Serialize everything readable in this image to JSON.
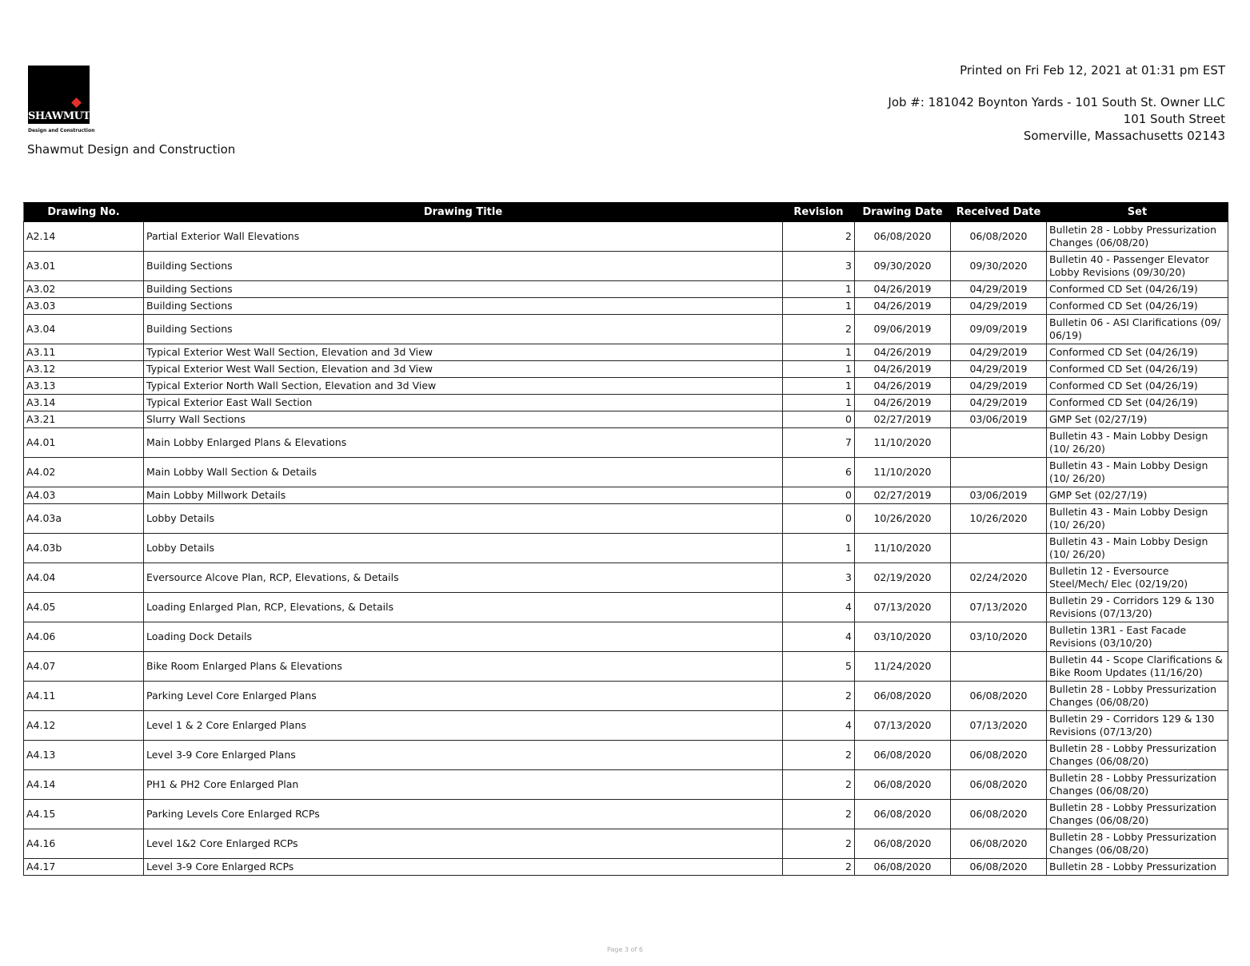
{
  "header": {
    "logo_text": "SHAWMUT",
    "logo_subtext": "Design and Construction",
    "company": "Shawmut Design and Construction",
    "printed": "Printed on Fri Feb 12, 2021 at 01:31 pm EST",
    "job": "Job #: 181042 Boynton Yards - 101 South St. Owner LLC",
    "address1": "101 South Street",
    "address2": "Somerville, Massachusetts 02143"
  },
  "table": {
    "columns": [
      "Drawing No.",
      "Drawing Title",
      "Revision",
      "Drawing Date",
      "Received Date",
      "Set"
    ],
    "rows": [
      [
        "A2.14",
        "Partial Exterior Wall Elevations",
        "2",
        "06/08/2020",
        "06/08/2020",
        "Bulletin 28 - Lobby Pressurization Changes (06/08/20)"
      ],
      [
        "A3.01",
        "Building Sections",
        "3",
        "09/30/2020",
        "09/30/2020",
        "Bulletin 40 - Passenger Elevator Lobby Revisions (09/30/20)"
      ],
      [
        "A3.02",
        "Building Sections",
        "1",
        "04/26/2019",
        "04/29/2019",
        "Conformed CD Set (04/26/19)"
      ],
      [
        "A3.03",
        "Building Sections",
        "1",
        "04/26/2019",
        "04/29/2019",
        "Conformed CD Set (04/26/19)"
      ],
      [
        "A3.04",
        "Building Sections",
        "2",
        "09/06/2019",
        "09/09/2019",
        "Bulletin 06 - ASI Clarifications (09/ 06/19)"
      ],
      [
        "A3.11",
        "Typical Exterior West Wall Section, Elevation and 3d View",
        "1",
        "04/26/2019",
        "04/29/2019",
        "Conformed CD Set (04/26/19)"
      ],
      [
        "A3.12",
        "Typical Exterior West Wall Section, Elevation and 3d View",
        "1",
        "04/26/2019",
        "04/29/2019",
        "Conformed CD Set (04/26/19)"
      ],
      [
        "A3.13",
        "Typical Exterior North Wall Section, Elevation and 3d View",
        "1",
        "04/26/2019",
        "04/29/2019",
        "Conformed CD Set (04/26/19)"
      ],
      [
        "A3.14",
        "Typical Exterior East Wall Section",
        "1",
        "04/26/2019",
        "04/29/2019",
        "Conformed CD Set (04/26/19)"
      ],
      [
        "A3.21",
        "Slurry Wall Sections",
        "0",
        "02/27/2019",
        "03/06/2019",
        "GMP Set (02/27/19)"
      ],
      [
        "A4.01",
        "Main Lobby Enlarged Plans & Elevations",
        "7",
        "11/10/2020",
        "",
        "Bulletin 43 - Main Lobby Design (10/ 26/20)"
      ],
      [
        "A4.02",
        "Main Lobby Wall Section & Details",
        "6",
        "11/10/2020",
        "",
        "Bulletin 43 - Main Lobby Design (10/ 26/20)"
      ],
      [
        "A4.03",
        "Main Lobby Millwork Details",
        "0",
        "02/27/2019",
        "03/06/2019",
        "GMP Set (02/27/19)"
      ],
      [
        "A4.03a",
        "Lobby Details",
        "0",
        "10/26/2020",
        "10/26/2020",
        "Bulletin 43 - Main Lobby Design (10/ 26/20)"
      ],
      [
        "A4.03b",
        "Lobby Details",
        "1",
        "11/10/2020",
        "",
        "Bulletin 43 - Main Lobby Design (10/ 26/20)"
      ],
      [
        "A4.04",
        "Eversource Alcove Plan, RCP, Elevations, & Details",
        "3",
        "02/19/2020",
        "02/24/2020",
        "Bulletin 12 - Eversource Steel/Mech/ Elec (02/19/20)"
      ],
      [
        "A4.05",
        "Loading Enlarged Plan, RCP, Elevations, & Details",
        "4",
        "07/13/2020",
        "07/13/2020",
        "Bulletin 29 - Corridors 129 & 130 Revisions (07/13/20)"
      ],
      [
        "A4.06",
        "Loading Dock Details",
        "4",
        "03/10/2020",
        "03/10/2020",
        "Bulletin 13R1 - East Facade Revisions (03/10/20)"
      ],
      [
        "A4.07",
        "Bike Room Enlarged Plans & Elevations",
        "5",
        "11/24/2020",
        "",
        "Bulletin 44 - Scope Clarifications & Bike Room Updates (11/16/20)"
      ],
      [
        "A4.11",
        "Parking Level Core Enlarged Plans",
        "2",
        "06/08/2020",
        "06/08/2020",
        "Bulletin 28 - Lobby Pressurization Changes (06/08/20)"
      ],
      [
        "A4.12",
        "Level 1 & 2 Core Enlarged Plans",
        "4",
        "07/13/2020",
        "07/13/2020",
        "Bulletin 29 - Corridors 129 & 130 Revisions (07/13/20)"
      ],
      [
        "A4.13",
        "Level 3-9 Core Enlarged Plans",
        "2",
        "06/08/2020",
        "06/08/2020",
        "Bulletin 28 - Lobby Pressurization Changes (06/08/20)"
      ],
      [
        "A4.14",
        "PH1 & PH2 Core Enlarged Plan",
        "2",
        "06/08/2020",
        "06/08/2020",
        "Bulletin 28 - Lobby Pressurization Changes (06/08/20)"
      ],
      [
        "A4.15",
        "Parking Levels Core Enlarged RCPs",
        "2",
        "06/08/2020",
        "06/08/2020",
        "Bulletin 28 - Lobby Pressurization Changes (06/08/20)"
      ],
      [
        "A4.16",
        "Level 1&2 Core Enlarged RCPs",
        "2",
        "06/08/2020",
        "06/08/2020",
        "Bulletin 28 - Lobby Pressurization Changes (06/08/20)"
      ],
      [
        "A4.17",
        "Level 3-9 Core Enlarged RCPs",
        "2",
        "06/08/2020",
        "06/08/2020",
        "Bulletin 28 - Lobby Pressurization"
      ]
    ]
  },
  "footer": {
    "page": "Page 3 of 6"
  }
}
